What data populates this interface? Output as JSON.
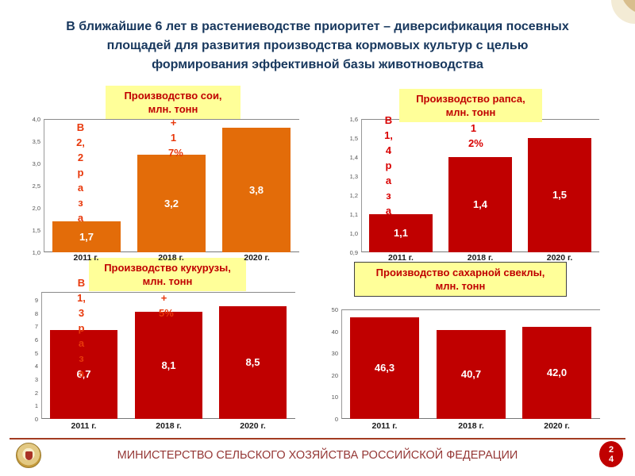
{
  "slide": {
    "title_lines": [
      "В ближайшие 6 лет в растениеводстве приоритет – диверсификация посевных",
      "площадей для развития производства кормовых культур с целью",
      "формирования эффективной базы животноводства"
    ],
    "footer_text": "МИНИСТЕРСТВО СЕЛЬСКОГО ХОЗЯЙСТВА РОССИЙСКОЙ ФЕДЕРАЦИИ",
    "page_number": "24"
  },
  "colors": {
    "title_text": "#17375D",
    "chart_title_text": "#C00000",
    "chart_title_bg": "#FFFF99",
    "soy_bar": "#E36C09",
    "red_bar": "#C00000",
    "footer_text": "#953735",
    "page_badge_bg": "#C00000",
    "corner_decor": "#D8BE8D"
  },
  "chart_data": [
    {
      "id": "soy",
      "type": "bar",
      "title": "Производство сои, млн. тонн",
      "title_lines": [
        "Производство сои,",
        "млн. тонн"
      ],
      "categories": [
        "2011 г.",
        "2018 г.",
        "2020 г."
      ],
      "values": [
        1.7,
        3.2,
        3.8
      ],
      "value_labels": [
        "1,7",
        "3,2",
        "3,8"
      ],
      "ylim": [
        1.0,
        4.0
      ],
      "yticks": [
        "4,0",
        "3,5",
        "3,0",
        "2,5",
        "2,0",
        "1,5",
        "1,0"
      ],
      "bar_color": "#E36C09",
      "annotations": [
        {
          "text": "В 2,2 раза",
          "color": "#E8380B"
        },
        {
          "text": "+17%",
          "color": "#E8380B"
        }
      ]
    },
    {
      "id": "rapeseed",
      "type": "bar",
      "title": "Производство рапса, млн. тонн",
      "title_lines": [
        "Производство рапса,",
        "млн. тонн"
      ],
      "categories": [
        "2011 г.",
        "2018 г.",
        "2020 г."
      ],
      "values": [
        1.1,
        1.4,
        1.5
      ],
      "value_labels": [
        "1,1",
        "1,4",
        "1,5"
      ],
      "ylim": [
        0.9,
        1.6
      ],
      "yticks": [
        "1,6",
        "1,5",
        "1,4",
        "1,3",
        "1,2",
        "1,1",
        "1,0",
        "0,9"
      ],
      "bar_color": "#C00000",
      "annotations": [
        {
          "text": "В 1,4 раза",
          "color": "#D90000"
        },
        {
          "text": "12%",
          "color": "#D90000"
        }
      ]
    },
    {
      "id": "corn",
      "type": "bar",
      "title": "Производство кукурузы, млн. тонн",
      "title_lines": [
        "Производство кукурузы,",
        "млн. тонн"
      ],
      "categories": [
        "2011 г.",
        "2018 г.",
        "2020 г."
      ],
      "values": [
        6.7,
        8.1,
        8.5
      ],
      "value_labels": [
        "6,7",
        "8,1",
        "8,5"
      ],
      "ylim": [
        0,
        9.6
      ],
      "yticks": [
        "9",
        "8",
        "7",
        "6",
        "5",
        "4",
        "3",
        "2",
        "1",
        "0"
      ],
      "bar_color": "#C00000",
      "annotations": [
        {
          "text": "В 1,3 раза",
          "color": "#E8380B"
        },
        {
          "text": "+5%",
          "color": "#E8380B"
        }
      ]
    },
    {
      "id": "sugar_beet",
      "type": "bar",
      "title": "Производство сахарной свеклы, млн. тонн",
      "title_lines": [
        "Производство сахарной свеклы,",
        "млн. тонн"
      ],
      "categories": [
        "2011 г.",
        "2018 г.",
        "2020 г."
      ],
      "values": [
        46.3,
        40.7,
        42.0
      ],
      "value_labels": [
        "46,3",
        "40,7",
        "42,0"
      ],
      "ylim": [
        0,
        50
      ],
      "yticks": [
        "50",
        "40",
        "30",
        "20",
        "10",
        "0"
      ],
      "bar_color": "#C00000",
      "annotations": []
    }
  ]
}
